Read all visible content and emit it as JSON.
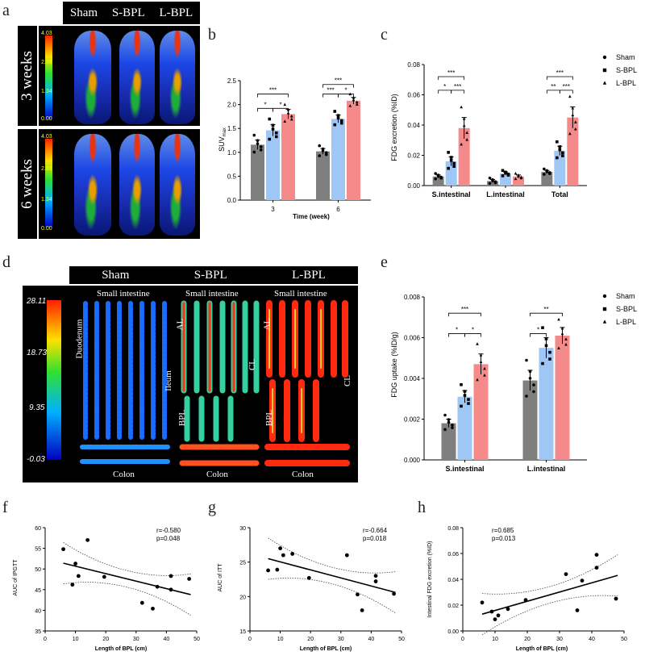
{
  "panels": {
    "a": "a",
    "b": "b",
    "c": "c",
    "d": "d",
    "e": "e",
    "f": "f",
    "g": "g",
    "h": "h"
  },
  "groups": [
    "Sham",
    "S-BPL",
    "L-BPL"
  ],
  "colors": {
    "sham": "#7f7f7f",
    "sbpl": "#9ec7f5",
    "lbpl": "#f48a8a"
  },
  "panel_a": {
    "time_3": "3 weeks",
    "time_6": "6 weeks",
    "cbar_ticks": [
      "4.03",
      "2.69",
      "1.34",
      "0.00"
    ]
  },
  "panel_d": {
    "cbar_ticks": [
      "28.11",
      "18.73",
      "9.35",
      "-0.03"
    ],
    "labels": {
      "small": "Small intestine",
      "colon": "Colon",
      "duodenum": "Duodenum",
      "ileum": "Ileum",
      "al": "AL",
      "bpl": "BPL",
      "cl": "CL"
    }
  },
  "chart_data": [
    {
      "id": "b",
      "type": "bar",
      "xlabel": "Time (week)",
      "ylabel": "SUVmax",
      "ylabel_main": "SUV",
      "ylabel_sub": "max",
      "categories": [
        "3",
        "6"
      ],
      "ylim": [
        0,
        2.5
      ],
      "yticks": [
        "0.0",
        "0.5",
        "1.0",
        "1.5",
        "2.0",
        "2.5"
      ],
      "series": [
        {
          "name": "Sham",
          "values": [
            1.16,
            1.02
          ]
        },
        {
          "name": "S-BPL",
          "values": [
            1.46,
            1.7
          ]
        },
        {
          "name": "L-BPL",
          "values": [
            1.8,
            2.08
          ]
        }
      ],
      "errors": [
        [
          0.1,
          0.06
        ],
        [
          0.12,
          0.08
        ],
        [
          0.1,
          0.07
        ]
      ],
      "significance": [
        "*",
        "*",
        "***",
        "***",
        "*",
        "***"
      ]
    },
    {
      "id": "c",
      "type": "bar",
      "ylabel": "FDG excretion (%ID)",
      "categories": [
        "S.intestinal",
        "L.intestinal",
        "Total"
      ],
      "ylim": [
        0,
        0.08
      ],
      "yticks": [
        "0.00",
        "0.02",
        "0.04",
        "0.06",
        "0.08"
      ],
      "series": [
        {
          "name": "Sham",
          "values": [
            0.006,
            0.003,
            0.009
          ]
        },
        {
          "name": "S-BPL",
          "values": [
            0.016,
            0.008,
            0.023
          ]
        },
        {
          "name": "L-BPL",
          "values": [
            0.038,
            0.006,
            0.045
          ]
        }
      ],
      "errors": [
        [
          0.001,
          0.001,
          0.001
        ],
        [
          0.003,
          0.001,
          0.003
        ],
        [
          0.007,
          0.001,
          0.007
        ]
      ],
      "legend": [
        "Sham",
        "S-BPL",
        "L-BPL"
      ],
      "significance": [
        "*",
        "***",
        "***",
        "**",
        "***",
        "***"
      ]
    },
    {
      "id": "e",
      "type": "bar",
      "ylabel": "FDG uptake (%ID/g)",
      "categories": [
        "S.intestinal",
        "L.intestinal"
      ],
      "ylim": [
        0,
        0.008
      ],
      "yticks": [
        "0.000",
        "0.002",
        "0.004",
        "0.006",
        "0.008"
      ],
      "series": [
        {
          "name": "Sham",
          "values": [
            0.0018,
            0.0039
          ]
        },
        {
          "name": "S-BPL",
          "values": [
            0.0031,
            0.0055
          ]
        },
        {
          "name": "L-BPL",
          "values": [
            0.0047,
            0.0061
          ]
        }
      ],
      "errors": [
        [
          0.0002,
          0.0005
        ],
        [
          0.0003,
          0.0005
        ],
        [
          0.0005,
          0.0004
        ]
      ],
      "legend": [
        "Sham",
        "S-BPL",
        "L-BPL"
      ],
      "significance": [
        "*",
        "*",
        "***",
        "*",
        "**"
      ]
    },
    {
      "id": "f",
      "type": "scatter",
      "xlabel": "Length of BPL (cm)",
      "ylabel": "AUC of IPGTT",
      "xlim": [
        0,
        50
      ],
      "ylim": [
        35,
        60
      ],
      "xticks": [
        "0",
        "10",
        "20",
        "30",
        "40",
        "50"
      ],
      "yticks": [
        "35",
        "40",
        "45",
        "50",
        "55",
        "60"
      ],
      "stats": [
        "r=-0.580",
        "p=0.048"
      ],
      "points": [
        [
          6,
          54.8
        ],
        [
          9,
          46.2
        ],
        [
          10,
          51.3
        ],
        [
          11,
          48.3
        ],
        [
          14,
          57
        ],
        [
          19.5,
          48.1
        ],
        [
          32,
          41.8
        ],
        [
          35.5,
          40.4
        ],
        [
          37,
          45.7
        ],
        [
          41.5,
          48.3
        ],
        [
          41.5,
          45
        ],
        [
          47.5,
          47.6
        ]
      ],
      "fit": [
        [
          6,
          51.4
        ],
        [
          48,
          43.8
        ]
      ]
    },
    {
      "id": "g",
      "type": "scatter",
      "xlabel": "Length of BPL (cm)",
      "ylabel": "AUC of ITT",
      "xlim": [
        0,
        50
      ],
      "ylim": [
        15,
        30
      ],
      "xticks": [
        "0",
        "10",
        "20",
        "30",
        "40",
        "50"
      ],
      "yticks": [
        "15",
        "20",
        "25",
        "30"
      ],
      "stats": [
        "r=-0.664",
        "p=0.018"
      ],
      "points": [
        [
          6,
          23.8
        ],
        [
          9,
          23.9
        ],
        [
          10,
          27
        ],
        [
          11,
          26
        ],
        [
          14,
          26.2
        ],
        [
          19.5,
          22.7
        ],
        [
          32,
          26
        ],
        [
          35.5,
          20.3
        ],
        [
          37,
          18
        ],
        [
          41.5,
          22.2
        ],
        [
          41.5,
          23
        ],
        [
          47.5,
          20.4
        ]
      ],
      "fit": [
        [
          6,
          25.5
        ],
        [
          48,
          20.6
        ]
      ]
    },
    {
      "id": "h",
      "type": "scatter",
      "xlabel": "Length of BPL (cm)",
      "ylabel": "Intestinal FDG excretion (%ID)",
      "xlim": [
        0,
        50
      ],
      "ylim": [
        0,
        0.08
      ],
      "xticks": [
        "0",
        "10",
        "20",
        "30",
        "40",
        "50"
      ],
      "yticks": [
        "0.00",
        "0.02",
        "0.04",
        "0.06",
        "0.08"
      ],
      "stats": [
        "r=0.685",
        "p=0.013"
      ],
      "points": [
        [
          6,
          0.022
        ],
        [
          9,
          0.015
        ],
        [
          10,
          0.009
        ],
        [
          11,
          0.012
        ],
        [
          14,
          0.017
        ],
        [
          19.5,
          0.024
        ],
        [
          32,
          0.044
        ],
        [
          35.5,
          0.016
        ],
        [
          37,
          0.039
        ],
        [
          41.5,
          0.049
        ],
        [
          41.5,
          0.059
        ],
        [
          47.5,
          0.025
        ]
      ],
      "fit": [
        [
          6,
          0.013
        ],
        [
          48,
          0.043
        ]
      ]
    }
  ]
}
